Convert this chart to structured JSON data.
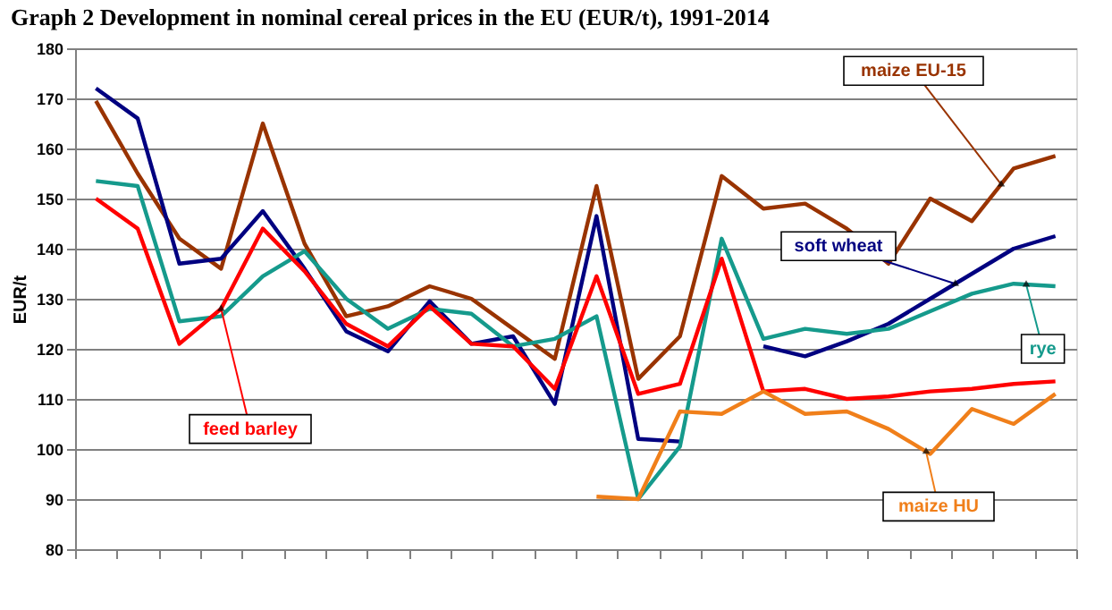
{
  "chart_data": {
    "type": "line",
    "title": "Graph 2    Development in nominal cereal prices in the EU (EUR/t), 1991-2014",
    "ylabel": "EUR/t",
    "categories": [
      null,
      null,
      null,
      null,
      null,
      null,
      null,
      null,
      null,
      null,
      null,
      null,
      null,
      null,
      null,
      null,
      null,
      null,
      null,
      null,
      null,
      null,
      null,
      null
    ],
    "series": [
      {
        "name": "maize EU-15",
        "color": "#993300",
        "values": [
          169.5,
          155,
          142,
          136,
          165,
          141,
          126.5,
          128.5,
          132.5,
          130,
          124,
          118,
          152.5,
          114,
          122.5,
          154.5,
          148,
          149,
          144,
          137,
          150,
          145.5,
          156,
          158.5
        ]
      },
      {
        "name": "soft wheat",
        "color": "#000080",
        "values": [
          172,
          166,
          137,
          138,
          147.5,
          136,
          123.5,
          119.5,
          129.5,
          121,
          122.5,
          109,
          146.5,
          102,
          101.5,
          null,
          120.5,
          118.5,
          121.5,
          125,
          130,
          135,
          140,
          142.5
        ]
      },
      {
        "name": "rye",
        "color": "#159a8c",
        "values": [
          153.5,
          152.5,
          125.5,
          126.5,
          134.5,
          139.5,
          130,
          124,
          128,
          127,
          120.5,
          122,
          126.5,
          90,
          100.5,
          142,
          122,
          124,
          123,
          124,
          127.5,
          131,
          133,
          132.5
        ]
      },
      {
        "name": "feed barley",
        "color": "#ff0000",
        "values": [
          150,
          144,
          121,
          128,
          144,
          135.5,
          125,
          120.5,
          128.5,
          121,
          120.5,
          112,
          134.5,
          111,
          113,
          138,
          111.5,
          112,
          110,
          110.5,
          111.5,
          112,
          113,
          113.5
        ]
      },
      {
        "name": "maize HU",
        "color": "#f07f1a",
        "values": [
          null,
          null,
          null,
          null,
          null,
          null,
          null,
          null,
          null,
          null,
          null,
          null,
          90.5,
          90,
          107.5,
          107,
          111.5,
          107,
          107.5,
          104,
          99,
          108,
          105,
          111
        ]
      }
    ],
    "ylim": [
      80,
      180
    ],
    "yticks": [
      80,
      90,
      100,
      110,
      120,
      130,
      140,
      150,
      160,
      170,
      180
    ],
    "grid": "y",
    "legend": false,
    "tick_labels": "y"
  }
}
